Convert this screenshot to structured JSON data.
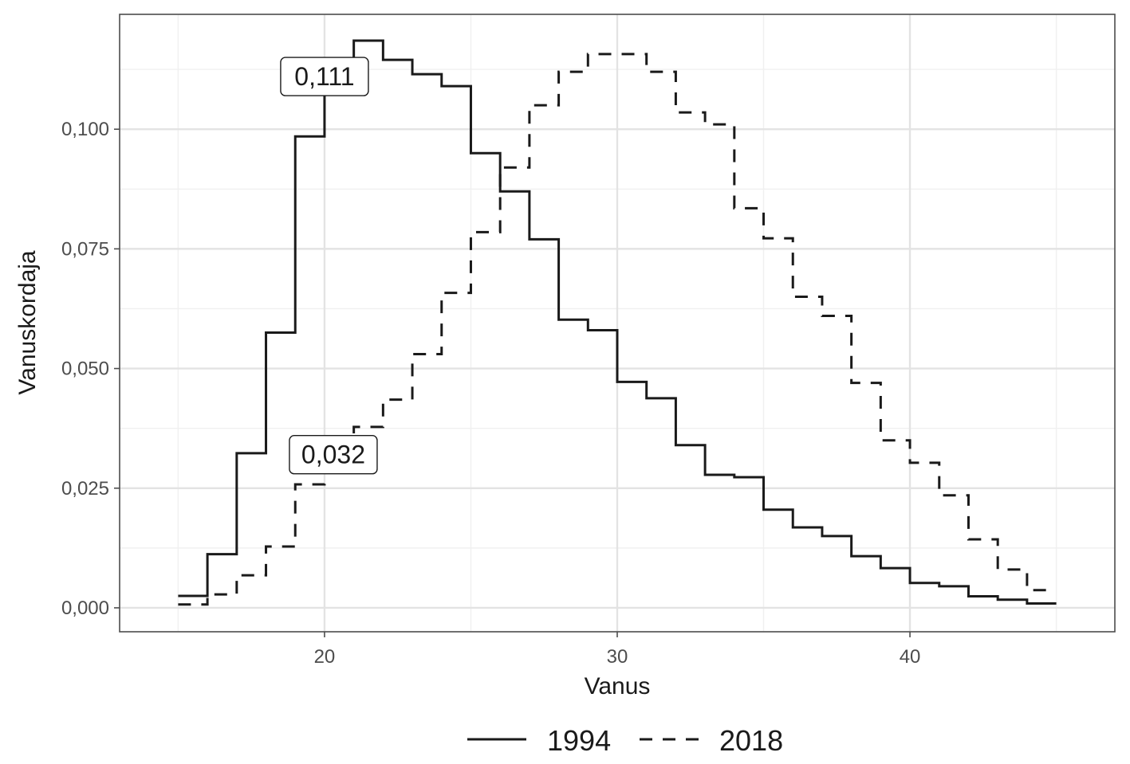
{
  "chart_data": {
    "type": "line",
    "step": true,
    "xlabel": "Vanus",
    "ylabel": "Vanuskordaja",
    "xlim": [
      13,
      47
    ],
    "ylim": [
      -0.005,
      0.124
    ],
    "x_ticks": [
      20,
      30,
      40
    ],
    "x_tick_labels": [
      "20",
      "30",
      "40"
    ],
    "y_ticks": [
      0,
      0.025,
      0.05,
      0.075,
      0.1
    ],
    "y_tick_labels": [
      "0,000",
      "0,025",
      "0,050",
      "0,075",
      "0,100"
    ],
    "grid": true,
    "legend_position": "bottom",
    "series": [
      {
        "name": "1994",
        "line_style": "solid",
        "x": [
          15,
          16,
          17,
          18,
          19,
          20,
          21,
          22,
          23,
          24,
          25,
          26,
          27,
          28,
          29,
          30,
          31,
          32,
          33,
          34,
          35,
          36,
          37,
          38,
          39,
          40,
          41,
          42,
          43,
          44
        ],
        "values": [
          0.0025,
          0.0112,
          0.0323,
          0.0575,
          0.0985,
          0.111,
          0.1185,
          0.1145,
          0.1115,
          0.109,
          0.095,
          0.087,
          0.077,
          0.0602,
          0.058,
          0.0472,
          0.0438,
          0.034,
          0.0278,
          0.0273,
          0.0205,
          0.0168,
          0.015,
          0.0108,
          0.0083,
          0.0052,
          0.0045,
          0.0024,
          0.0017,
          0.0009
        ]
      },
      {
        "name": "2018",
        "line_style": "dashed",
        "x": [
          15,
          16,
          17,
          18,
          19,
          20,
          21,
          22,
          23,
          24,
          25,
          26,
          27,
          28,
          29,
          30,
          31,
          32,
          33,
          34,
          35,
          36,
          37,
          38,
          39,
          40,
          41,
          42,
          43,
          44
        ],
        "values": [
          0.0007,
          0.0028,
          0.0068,
          0.0128,
          0.0258,
          0.032,
          0.0378,
          0.0435,
          0.053,
          0.0658,
          0.0785,
          0.092,
          0.105,
          0.112,
          0.1157,
          0.1157,
          0.112,
          0.1035,
          0.101,
          0.0835,
          0.0772,
          0.065,
          0.061,
          0.047,
          0.035,
          0.0303,
          0.0235,
          0.0143,
          0.008,
          0.0037
        ]
      }
    ],
    "annotations": [
      {
        "text": "0,111",
        "x": 20.0,
        "y": 0.111
      },
      {
        "text": "0,032",
        "x": 20.3,
        "y": 0.032
      }
    ],
    "colors": {
      "line": "#1a1a1a",
      "grid_major": "#e3e3e3",
      "grid_minor": "#f0f0f0",
      "panel_border": "#4d4d4d",
      "tick": "#4d4d4d"
    }
  }
}
